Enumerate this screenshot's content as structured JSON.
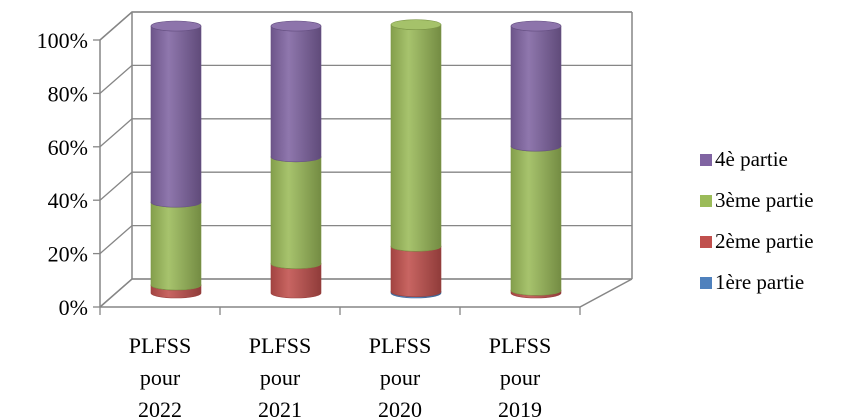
{
  "chart_data": {
    "type": "bar",
    "subtype": "100% stacked 3-D cylinder",
    "title": "",
    "xlabel": "",
    "ylabel": "",
    "categories": [
      "PLFSS pour 2022",
      "PLFSS pour 2021",
      "PLFSS pour 2020",
      "PLFSS pour 2019"
    ],
    "y_ticks": [
      "0%",
      "20%",
      "40%",
      "60%",
      "80%",
      "100%"
    ],
    "ylim": [
      0,
      100
    ],
    "grid": true,
    "legend_position": "right",
    "series": [
      {
        "name": "1ère partie",
        "color": "#4F81BD",
        "values": [
          0,
          0,
          0.5,
          0
        ]
      },
      {
        "name": "2ème partie",
        "color": "#C0504D",
        "values": [
          3,
          11,
          17,
          1
        ]
      },
      {
        "name": "3ème partie",
        "color": "#9BBB59",
        "values": [
          31,
          40,
          83,
          54
        ]
      },
      {
        "name": "4è partie",
        "color": "#8064A2",
        "values": [
          66,
          49,
          0,
          45
        ]
      }
    ]
  }
}
